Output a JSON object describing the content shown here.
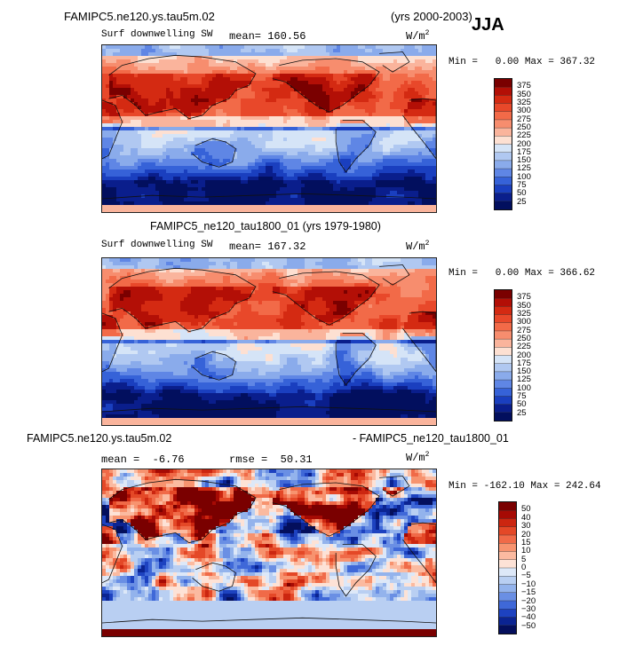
{
  "header": {
    "case_title": "FAMIPC5.ne120.ys.tau5m.02",
    "years": "(yrs 2000-2003)",
    "season": "JJA"
  },
  "panels": [
    {
      "variable": "Surf downwelling SW",
      "stat_label": "mean=",
      "stat_value": "160.56",
      "units": "W/m",
      "units_exp": "2",
      "min_text": "Min =   0.00 Max = 367.32"
    },
    {
      "title": "FAMIPC5_ne120_tau1800_01 (yrs 1979-1980)",
      "variable": "Surf downwelling SW",
      "stat_label": "mean=",
      "stat_value": "167.32",
      "units": "W/m",
      "units_exp": "2",
      "min_text": "Min =   0.00 Max = 366.62"
    },
    {
      "title_left": "FAMIPC5.ne120.ys.tau5m.02",
      "title_right": "- FAMIPC5_ne120_tau1800_01",
      "mean_label": "mean =",
      "mean_value": "-6.76",
      "rmse_label": "rmse =",
      "rmse_value": "50.31",
      "units": "W/m",
      "units_exp": "2",
      "min_text": "Min = -162.10 Max = 242.64"
    }
  ],
  "chart_data": [
    {
      "type": "heatmap",
      "title": "Surf downwelling SW",
      "subtitle": "FAMIPC5.ne120.ys.tau5m.02 (yrs 2000-2003) JJA",
      "units": "W/m2",
      "mean": 160.56,
      "min": 0.0,
      "max": 367.32,
      "colorbar_levels": [
        "375",
        "350",
        "325",
        "300",
        "275",
        "250",
        "225",
        "200",
        "175",
        "150",
        "125",
        "100",
        "75",
        "50",
        "25"
      ]
    },
    {
      "type": "heatmap",
      "title": "Surf downwelling SW",
      "subtitle": "FAMIPC5_ne120_tau1800_01 (yrs 1979-1980)",
      "units": "W/m2",
      "mean": 167.32,
      "min": 0.0,
      "max": 366.62,
      "colorbar_levels": [
        "375",
        "350",
        "325",
        "300",
        "275",
        "250",
        "225",
        "200",
        "175",
        "150",
        "125",
        "100",
        "75",
        "50",
        "25"
      ]
    },
    {
      "type": "heatmap",
      "title": "FAMIPC5.ne120.ys.tau5m.02 - FAMIPC5_ne120_tau1800_01",
      "units": "W/m2",
      "mean": -6.76,
      "rmse": 50.31,
      "min": -162.1,
      "max": 242.64,
      "colorbar_levels": [
        "50",
        "40",
        "30",
        "20",
        "15",
        "10",
        "5",
        "0",
        "−5",
        "−10",
        "−15",
        "−20",
        "−30",
        "−40",
        "−50"
      ]
    }
  ],
  "colors": {
    "abs_palette": [
      "#7a0000",
      "#b30f06",
      "#d42a12",
      "#e8482a",
      "#f26a48",
      "#f78d6e",
      "#fab49c",
      "#fde0d2",
      "#d5e4f7",
      "#b0c8f1",
      "#8aabeb",
      "#5f86e5",
      "#3662d8",
      "#1a3fbf",
      "#0a1e8c",
      "#020f5e"
    ],
    "diff_palette": [
      "#7a0000",
      "#a60a04",
      "#cc2610",
      "#e44827",
      "#f06a48",
      "#f7936f",
      "#fbbaa0",
      "#fde2d6",
      "#dde8f8",
      "#b9cff2",
      "#93b3ec",
      "#6a8fe4",
      "#3f68d8",
      "#1d42c0",
      "#0b2492",
      "#040f5c"
    ]
  }
}
